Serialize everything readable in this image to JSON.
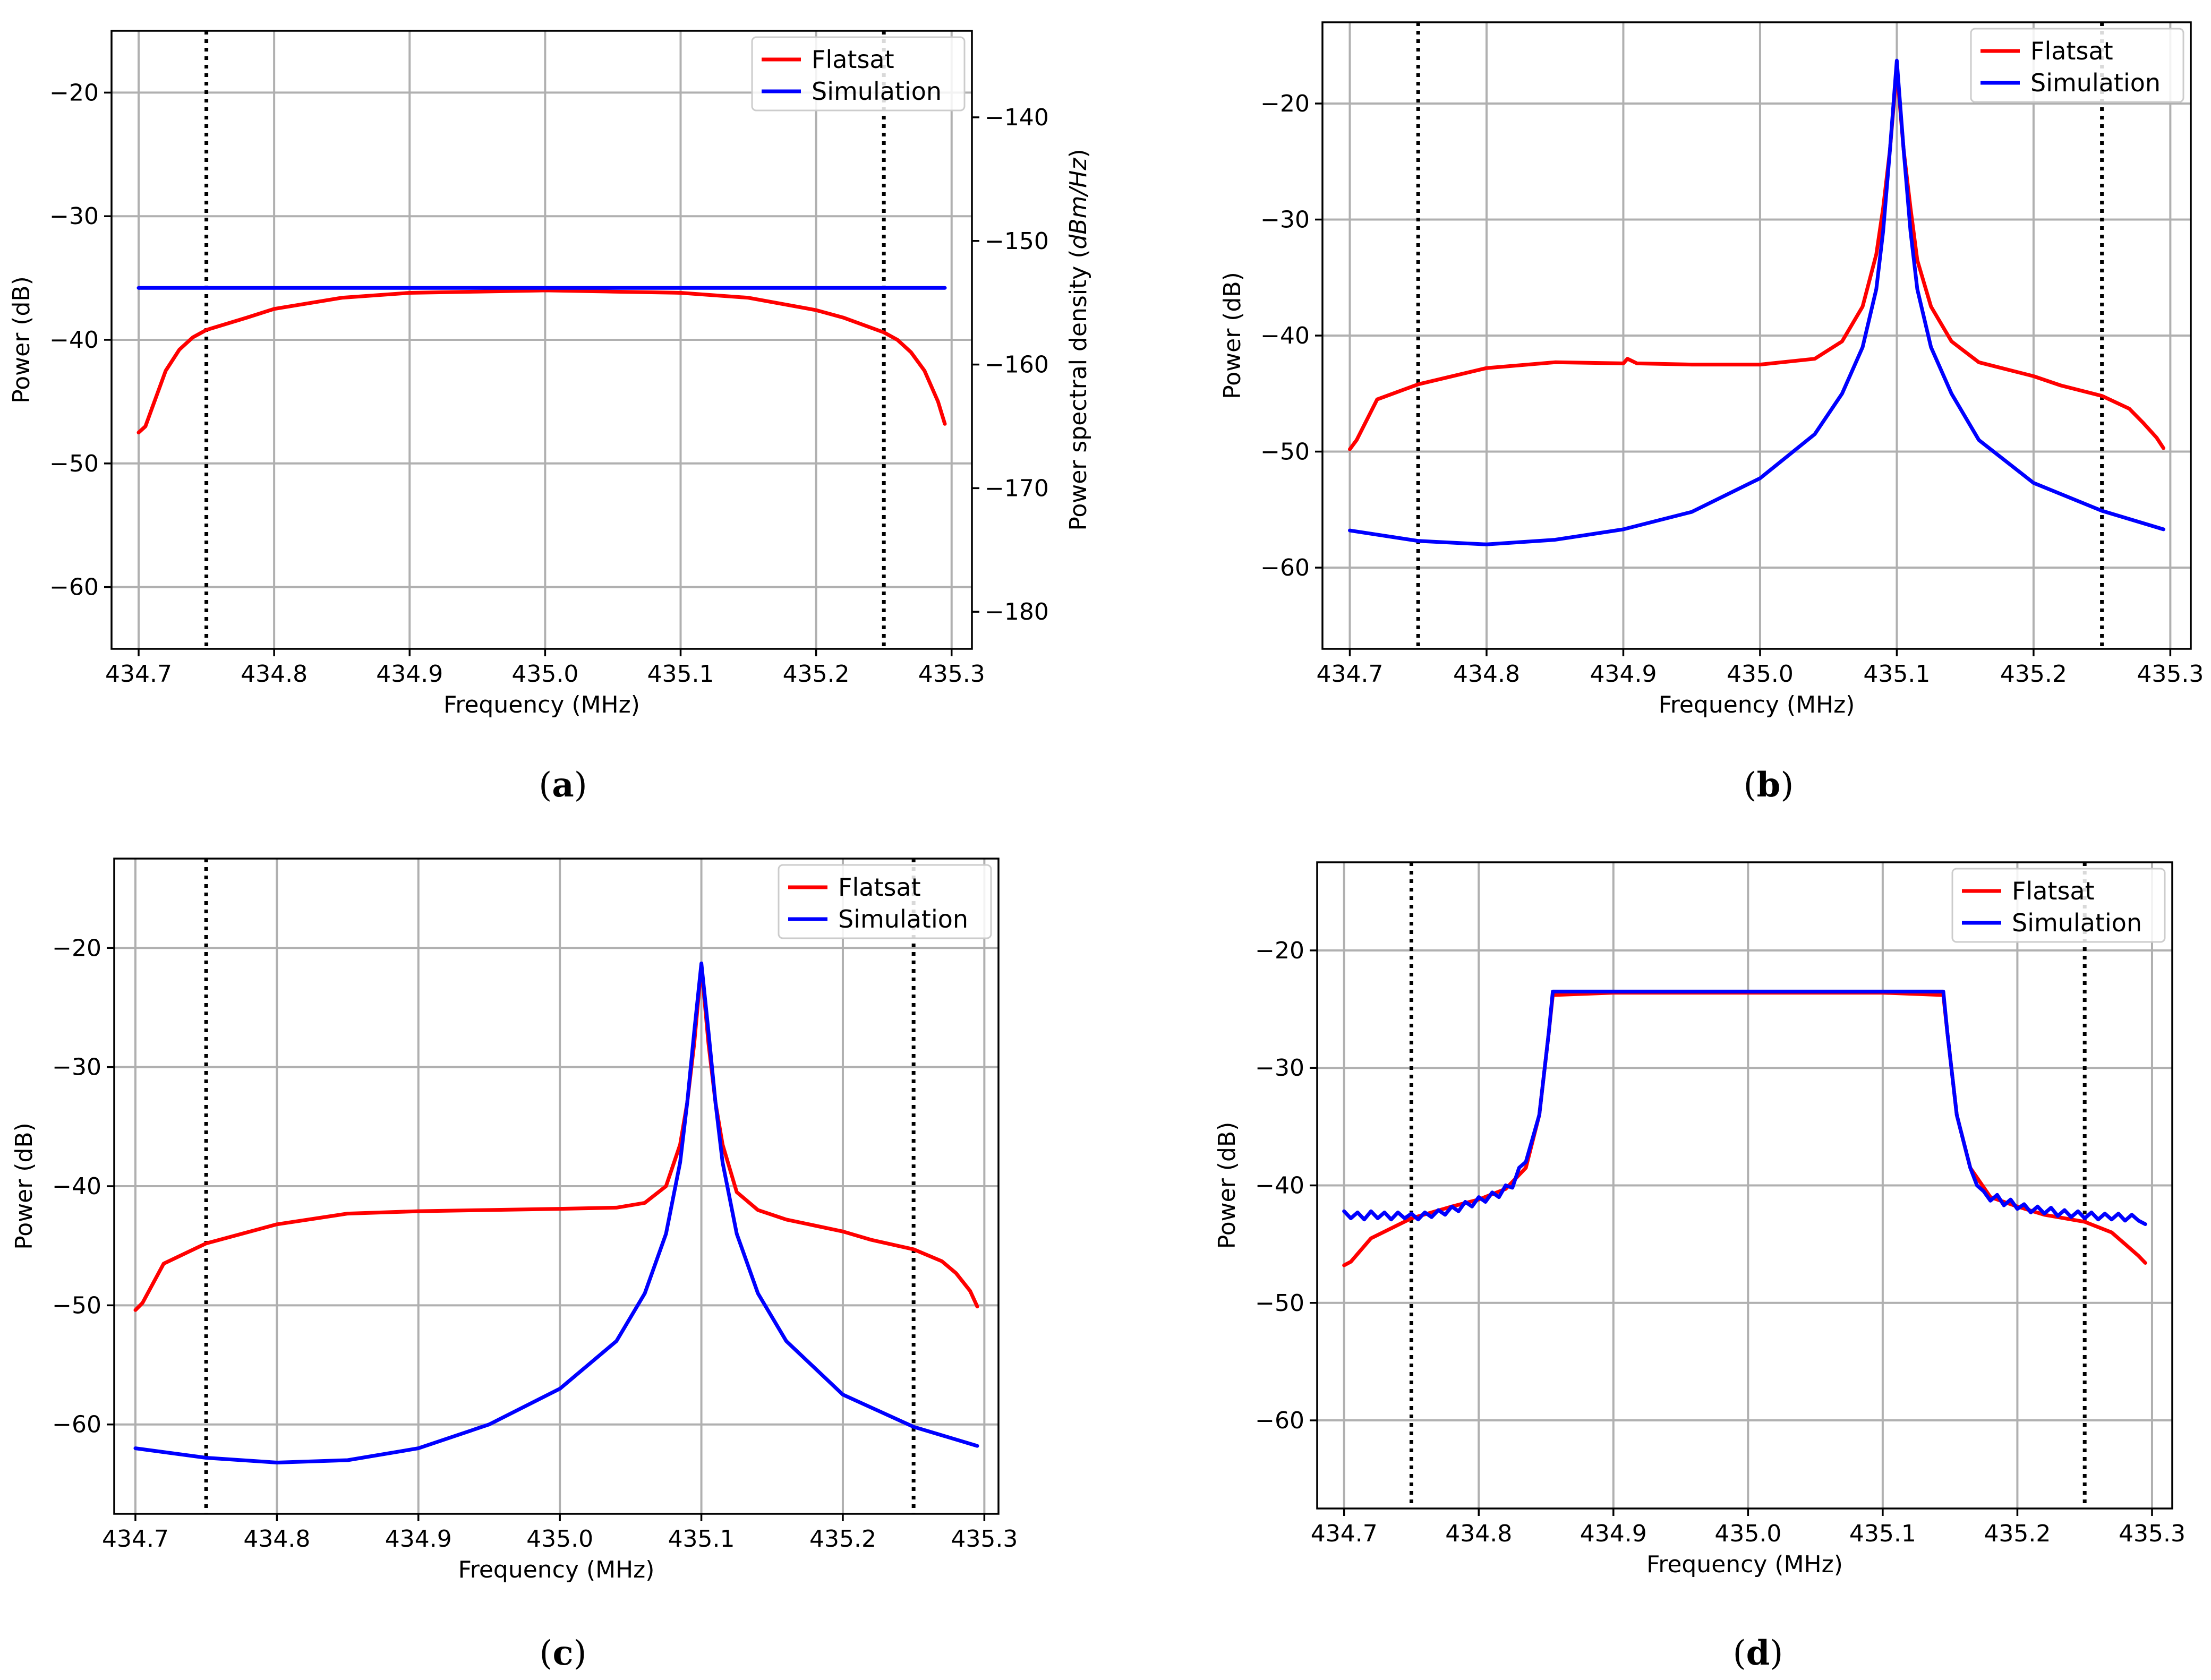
{
  "chart_data": [
    {
      "type": "line",
      "panel": "a",
      "caption_letter": "a",
      "xlabel": "Frequency (MHz)",
      "ylabel": "Power (dB)",
      "xlim": [
        434.68,
        435.315
      ],
      "ylim": [
        -65,
        -15
      ],
      "xticks": [
        "434.7",
        "434.8",
        "434.9",
        "435.0",
        "435.1",
        "435.2",
        "435.3"
      ],
      "xtick_values": [
        434.7,
        434.8,
        434.9,
        435.0,
        435.1,
        435.2,
        435.3
      ],
      "yticks": [
        "−20",
        "−30",
        "−40",
        "−50",
        "−60"
      ],
      "ytick_values": [
        -20,
        -30,
        -40,
        -50,
        -60
      ],
      "secondary_ylabel": "Power spectral density (dBm/Hz)",
      "secondary_ylabel_plain": "Power spectral density (",
      "secondary_ylabel_italic": "dBm/Hz",
      "secondary_ylabel_close": ")",
      "secondary_yticks": [
        "−140",
        "−150",
        "−160",
        "−170",
        "−180"
      ],
      "secondary_ytick_values": [
        -140,
        -150,
        -160,
        -170,
        -180
      ],
      "secondary_ylim": [
        -183,
        -133
      ],
      "vlines": [
        434.75,
        435.25
      ],
      "legend": {
        "location": "top-right",
        "entries": [
          "Flatsat",
          "Simulation"
        ]
      },
      "series": [
        {
          "name": "Flatsat",
          "color": "#ff0000",
          "x": [
            434.7,
            434.705,
            434.71,
            434.72,
            434.73,
            434.74,
            434.75,
            434.78,
            434.8,
            434.85,
            434.9,
            434.95,
            435.0,
            435.05,
            435.1,
            435.15,
            435.2,
            435.22,
            435.25,
            435.26,
            435.27,
            435.28,
            435.29,
            435.295
          ],
          "y": [
            -47.5,
            -47,
            -45.5,
            -42.5,
            -40.8,
            -39.8,
            -39.2,
            -38.2,
            -37.5,
            -36.6,
            -36.2,
            -36.1,
            -36.0,
            -36.1,
            -36.2,
            -36.6,
            -37.6,
            -38.2,
            -39.4,
            -40,
            -41,
            -42.5,
            -45,
            -46.8
          ]
        },
        {
          "name": "Simulation",
          "color": "#0000ff",
          "x": [
            434.7,
            434.8,
            434.9,
            435.0,
            435.1,
            435.2,
            435.295
          ],
          "y": [
            -35.8,
            -35.8,
            -35.8,
            -35.8,
            -35.8,
            -35.8,
            -35.8
          ]
        }
      ]
    },
    {
      "type": "line",
      "panel": "b",
      "caption_letter": "b",
      "xlabel": "Frequency (MHz)",
      "ylabel": "Power (dB)",
      "xlim": [
        434.68,
        435.315
      ],
      "ylim": [
        -67,
        -13
      ],
      "xticks": [
        "434.7",
        "434.8",
        "434.9",
        "435.0",
        "435.1",
        "435.2",
        "435.3"
      ],
      "xtick_values": [
        434.7,
        434.8,
        434.9,
        435.0,
        435.1,
        435.2,
        435.3
      ],
      "yticks": [
        "−20",
        "−30",
        "−40",
        "−50",
        "−60"
      ],
      "ytick_values": [
        -20,
        -30,
        -40,
        -50,
        -60
      ],
      "vlines": [
        434.75,
        435.25
      ],
      "legend": {
        "location": "top-right",
        "entries": [
          "Flatsat",
          "Simulation"
        ]
      },
      "series": [
        {
          "name": "Flatsat",
          "color": "#ff0000",
          "x": [
            434.7,
            434.705,
            434.72,
            434.75,
            434.8,
            434.85,
            434.9,
            434.903,
            434.91,
            434.95,
            435.0,
            435.04,
            435.06,
            435.075,
            435.085,
            435.09,
            435.095,
            435.1,
            435.105,
            435.11,
            435.115,
            435.125,
            435.14,
            435.16,
            435.2,
            435.22,
            435.25,
            435.27,
            435.28,
            435.29,
            435.295
          ],
          "y": [
            -49.8,
            -49,
            -45.5,
            -44.2,
            -42.8,
            -42.3,
            -42.4,
            -42,
            -42.4,
            -42.5,
            -42.5,
            -42,
            -40.5,
            -37.5,
            -33,
            -29,
            -24,
            -17,
            -24,
            -29,
            -33.5,
            -37.5,
            -40.5,
            -42.3,
            -43.5,
            -44.3,
            -45.2,
            -46.3,
            -47.5,
            -48.8,
            -49.7
          ]
        },
        {
          "name": "Simulation",
          "color": "#0000ff",
          "x": [
            434.7,
            434.75,
            434.8,
            434.85,
            434.9,
            434.95,
            435.0,
            435.04,
            435.06,
            435.075,
            435.085,
            435.09,
            435.095,
            435.1,
            435.105,
            435.11,
            435.115,
            435.125,
            435.14,
            435.16,
            435.2,
            435.25,
            435.295
          ],
          "y": [
            -56.8,
            -57.7,
            -58,
            -57.6,
            -56.7,
            -55.2,
            -52.3,
            -48.5,
            -45,
            -41,
            -36,
            -31,
            -24,
            -16.3,
            -24,
            -31,
            -36,
            -41,
            -45,
            -49,
            -52.7,
            -55.1,
            -56.7
          ]
        }
      ]
    },
    {
      "type": "line",
      "panel": "c",
      "caption_letter": "c",
      "xlabel": "Frequency (MHz)",
      "ylabel": "Power (dB)",
      "xlim": [
        434.685,
        435.31
      ],
      "ylim": [
        -67.5,
        -12.5
      ],
      "xticks": [
        "434.7",
        "434.8",
        "434.9",
        "435.0",
        "435.1",
        "435.2",
        "435.3"
      ],
      "xtick_values": [
        434.7,
        434.8,
        434.9,
        435.0,
        435.1,
        435.2,
        435.3
      ],
      "yticks": [
        "−20",
        "−30",
        "−40",
        "−50",
        "−60"
      ],
      "ytick_values": [
        -20,
        -30,
        -40,
        -50,
        -60
      ],
      "vlines": [
        434.75,
        435.25
      ],
      "legend": {
        "location": "top-right",
        "entries": [
          "Flatsat",
          "Simulation"
        ]
      },
      "series": [
        {
          "name": "Flatsat",
          "color": "#ff0000",
          "x": [
            434.7,
            434.705,
            434.72,
            434.75,
            434.8,
            434.85,
            434.9,
            434.95,
            435.0,
            435.04,
            435.06,
            435.075,
            435.085,
            435.09,
            435.095,
            435.1,
            435.105,
            435.11,
            435.115,
            435.125,
            435.14,
            435.16,
            435.2,
            435.22,
            435.25,
            435.27,
            435.28,
            435.29,
            435.295
          ],
          "y": [
            -50.4,
            -49.8,
            -46.5,
            -44.8,
            -43.2,
            -42.3,
            -42.1,
            -42.0,
            -41.9,
            -41.8,
            -41.4,
            -40,
            -36.5,
            -33,
            -28,
            -21.5,
            -28,
            -33,
            -36.5,
            -40.5,
            -42,
            -42.8,
            -43.8,
            -44.5,
            -45.3,
            -46.3,
            -47.3,
            -48.8,
            -50.1
          ]
        },
        {
          "name": "Simulation",
          "color": "#0000ff",
          "x": [
            434.7,
            434.75,
            434.8,
            434.85,
            434.9,
            434.95,
            435.0,
            435.04,
            435.06,
            435.075,
            435.085,
            435.09,
            435.095,
            435.1,
            435.105,
            435.11,
            435.115,
            435.125,
            435.14,
            435.16,
            435.2,
            435.25,
            435.295
          ],
          "y": [
            -62,
            -62.8,
            -63.2,
            -63,
            -62,
            -60,
            -57,
            -53,
            -49,
            -44,
            -38,
            -33,
            -27,
            -21.3,
            -27,
            -33,
            -38,
            -44,
            -49,
            -53,
            -57.5,
            -60.2,
            -61.8
          ]
        }
      ]
    },
    {
      "type": "line",
      "panel": "d",
      "caption_letter": "d",
      "xlabel": "Frequency (MHz)",
      "ylabel": "Power (dB)",
      "xlim": [
        434.68,
        435.315
      ],
      "ylim": [
        -67.5,
        -12.5
      ],
      "xticks": [
        "434.7",
        "434.8",
        "434.9",
        "435.0",
        "435.1",
        "435.2",
        "435.3"
      ],
      "xtick_values": [
        434.7,
        434.8,
        434.9,
        435.0,
        435.1,
        435.2,
        435.3
      ],
      "yticks": [
        "−20",
        "−30",
        "−40",
        "−50",
        "−60"
      ],
      "ytick_values": [
        -20,
        -30,
        -40,
        -50,
        -60
      ],
      "vlines": [
        434.75,
        435.25
      ],
      "legend": {
        "location": "top-right",
        "entries": [
          "Flatsat",
          "Simulation"
        ]
      },
      "series": [
        {
          "name": "Flatsat",
          "color": "#ff0000",
          "x": [
            434.7,
            434.705,
            434.72,
            434.75,
            434.78,
            434.8,
            434.82,
            434.835,
            434.845,
            434.852,
            434.855,
            434.9,
            435.0,
            435.1,
            435.145,
            435.148,
            435.155,
            435.165,
            435.18,
            435.2,
            435.22,
            435.25,
            435.27,
            435.28,
            435.29,
            435.295
          ],
          "y": [
            -46.8,
            -46.5,
            -44.5,
            -42.8,
            -41.8,
            -41.2,
            -40.3,
            -38.5,
            -34,
            -27,
            -23.8,
            -23.6,
            -23.6,
            -23.6,
            -23.8,
            -27,
            -34,
            -38.5,
            -41,
            -41.8,
            -42.5,
            -43.1,
            -44,
            -45,
            -46,
            -46.6
          ]
        },
        {
          "name": "Simulation",
          "color": "#0000ff",
          "x": [
            434.7,
            434.705,
            434.71,
            434.715,
            434.72,
            434.725,
            434.73,
            434.735,
            434.74,
            434.745,
            434.75,
            434.755,
            434.76,
            434.765,
            434.77,
            434.775,
            434.78,
            434.785,
            434.79,
            434.795,
            434.8,
            434.805,
            434.81,
            434.815,
            434.82,
            434.825,
            434.83,
            434.835,
            434.845,
            434.852,
            434.855,
            434.9,
            435.0,
            435.1,
            435.145,
            435.148,
            435.155,
            435.165,
            435.17,
            435.175,
            435.18,
            435.185,
            435.19,
            435.195,
            435.2,
            435.205,
            435.21,
            435.215,
            435.22,
            435.225,
            435.23,
            435.235,
            435.24,
            435.245,
            435.25,
            435.255,
            435.26,
            435.265,
            435.27,
            435.275,
            435.28,
            435.285,
            435.29,
            435.295
          ],
          "y": [
            -42.2,
            -42.8,
            -42.3,
            -42.9,
            -42.2,
            -42.8,
            -42.3,
            -42.9,
            -42.3,
            -42.8,
            -42.4,
            -42.9,
            -42.3,
            -42.7,
            -42.1,
            -42.5,
            -41.8,
            -42.2,
            -41.4,
            -41.8,
            -41,
            -41.4,
            -40.6,
            -41,
            -40,
            -40.2,
            -38.5,
            -38,
            -34,
            -27,
            -23.5,
            -23.5,
            -23.5,
            -23.5,
            -23.5,
            -27,
            -34,
            -38.5,
            -40,
            -40.5,
            -41.3,
            -40.8,
            -41.7,
            -41.2,
            -42,
            -41.6,
            -42.3,
            -41.8,
            -42.4,
            -41.9,
            -42.6,
            -42.1,
            -42.7,
            -42.2,
            -42.8,
            -42.3,
            -42.9,
            -42.4,
            -42.9,
            -42.4,
            -43,
            -42.5,
            -43,
            -43.3
          ]
        }
      ]
    }
  ]
}
